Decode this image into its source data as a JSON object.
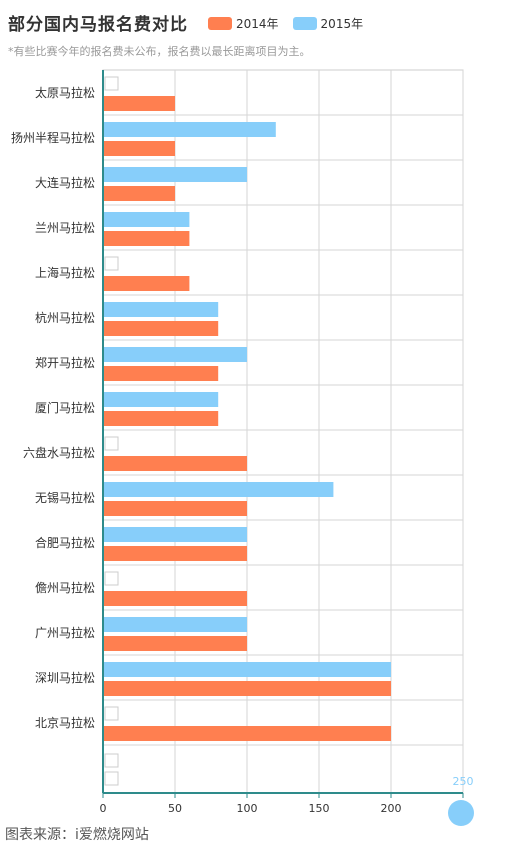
{
  "chart_data": {
    "type": "bar",
    "orientation": "horizontal",
    "title": "部分国内马报名费对比",
    "subtitle": "*有些比赛今年的报名费未公布，报名费以最长距离项目为主。",
    "categories": [
      "太原马拉松",
      "扬州半程马拉松",
      "大连马拉松",
      "兰州马拉松",
      "上海马拉松",
      "杭州马拉松",
      "郑开马拉松",
      "厦门马拉松",
      "六盘水马拉松",
      "无锡马拉松",
      "合肥马拉松",
      "儋州马拉松",
      "广州马拉松",
      "深圳马拉松",
      "北京马拉松"
    ],
    "series": [
      {
        "name": "2014年",
        "color": "#FF7F50",
        "values": [
          50,
          50,
          50,
          60,
          60,
          80,
          80,
          80,
          100,
          100,
          100,
          100,
          100,
          200,
          200
        ]
      },
      {
        "name": "2015年",
        "color": "#87CEFA",
        "values": [
          null,
          120,
          100,
          60,
          null,
          80,
          100,
          80,
          null,
          160,
          100,
          null,
          100,
          200,
          null
        ]
      }
    ],
    "xlim": [
      0,
      250
    ],
    "x_ticks": [
      "0",
      "50",
      "100",
      "150",
      "200",
      "250"
    ],
    "grid": true,
    "legend": "top"
  },
  "source": "图表来源：i爱燃烧网站"
}
